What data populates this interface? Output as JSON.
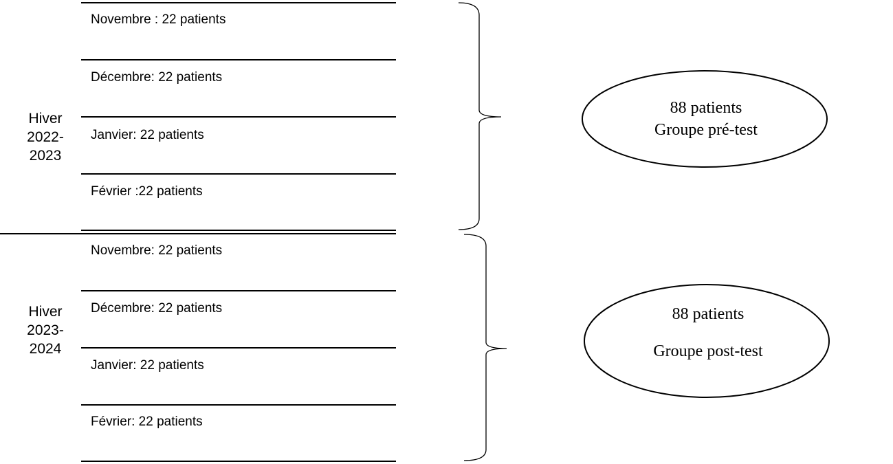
{
  "periods": [
    {
      "season": [
        "Hiver",
        "2022-",
        "2023"
      ],
      "months": [
        "Novembre : 22 patients",
        "Décembre: 22 patients",
        "Janvier: 22 patients",
        "Février :22 patients"
      ],
      "group": {
        "count_label": "88 patients",
        "name": "Groupe pré-test"
      }
    },
    {
      "season": [
        "Hiver",
        "2023-",
        "2024"
      ],
      "months": [
        "Novembre: 22 patients",
        "Décembre: 22 patients",
        "Janvier: 22 patients",
        "Février: 22 patients"
      ],
      "group": {
        "count_label": "88 patients",
        "name": "Groupe post-test"
      }
    }
  ]
}
